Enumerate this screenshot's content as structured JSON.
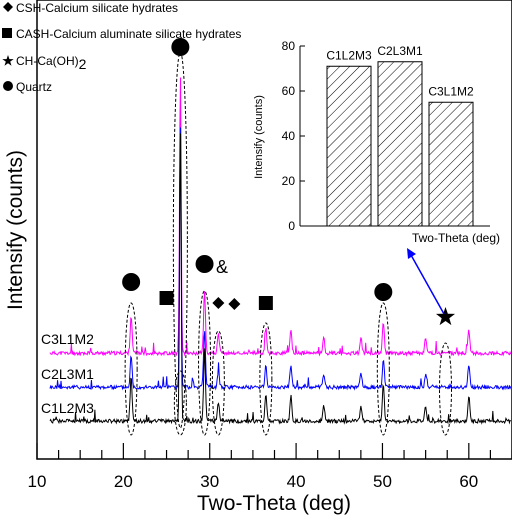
{
  "chart_data": [
    {
      "type": "line",
      "title": "",
      "xlabel": "Two-Theta (deg)",
      "ylabel": "Intensify (counts)",
      "xlim": [
        10,
        65
      ],
      "x_ticks": [
        "10",
        "20",
        "30",
        "40",
        "50",
        "60"
      ],
      "y_ticks_shown": false,
      "grid": false,
      "series": [
        {
          "name": "C3L1M2",
          "color": "#ff00ff",
          "peaks": [
            [
              20.9,
              0.12
            ],
            [
              26.6,
              0.9
            ],
            [
              29.4,
              0.2
            ],
            [
              31.0,
              0.06
            ],
            [
              36.5,
              0.08
            ],
            [
              39.4,
              0.07
            ],
            [
              43.2,
              0.05
            ],
            [
              47.5,
              0.05
            ],
            [
              50.1,
              0.1
            ],
            [
              55.0,
              0.05
            ],
            [
              60.0,
              0.07
            ]
          ]
        },
        {
          "name": "C2L3M1",
          "color": "#0000ff",
          "peaks": [
            [
              20.9,
              0.1
            ],
            [
              26.6,
              0.85
            ],
            [
              29.4,
              0.18
            ],
            [
              31.0,
              0.05
            ],
            [
              36.5,
              0.07
            ],
            [
              39.4,
              0.07
            ],
            [
              43.2,
              0.04
            ],
            [
              47.5,
              0.05
            ],
            [
              50.1,
              0.09
            ],
            [
              55.0,
              0.04
            ],
            [
              60.0,
              0.07
            ]
          ]
        },
        {
          "name": "C1L2M3",
          "color": "#000000",
          "peaks": [
            [
              20.9,
              0.14
            ],
            [
              26.6,
              0.95
            ],
            [
              29.4,
              0.22
            ],
            [
              31.0,
              0.06
            ],
            [
              36.5,
              0.09
            ],
            [
              39.4,
              0.08
            ],
            [
              43.2,
              0.05
            ],
            [
              47.5,
              0.05
            ],
            [
              50.1,
              0.12
            ],
            [
              55.0,
              0.05
            ],
            [
              60.0,
              0.08
            ]
          ]
        }
      ],
      "legend": {
        "placement": "top-left",
        "entries": [
          {
            "symbol": "diamond",
            "label": "CSH-Calcium silicate hydrates"
          },
          {
            "symbol": "square",
            "label": "CASH-Calcium aluminate silicate hydrates"
          },
          {
            "symbol": "star",
            "label": "CH-Ca(OH)",
            "subscript": "2"
          },
          {
            "symbol": "circle",
            "label": "Quartz"
          }
        ]
      },
      "annotations": {
        "ampersand": "&",
        "markers": [
          {
            "symbol": "circle",
            "x": 20.9
          },
          {
            "symbol": "circle",
            "x": 26.6
          },
          {
            "symbol": "square",
            "x": 25.0
          },
          {
            "symbol": "circle",
            "x": 29.4
          },
          {
            "symbol": "diamond",
            "x": 31.0
          },
          {
            "symbol": "diamond",
            "x": 31.0
          },
          {
            "symbol": "square",
            "x": 36.5
          },
          {
            "symbol": "circle",
            "x": 50.1
          },
          {
            "symbol": "star",
            "x": 57.3
          }
        ]
      }
    },
    {
      "type": "bar",
      "title": "",
      "categories": [
        "C1L2M3",
        "C2L3M1",
        "C3L1M2"
      ],
      "values": [
        71,
        73,
        55
      ],
      "xlabel": "Two-Theta (deg)",
      "ylabel": "Intensify (counts)",
      "ylim": [
        0,
        80
      ],
      "y_ticks": [
        "0",
        "20",
        "40",
        "60",
        "80"
      ],
      "fill": "hatched",
      "placement": "top-right inset"
    }
  ]
}
